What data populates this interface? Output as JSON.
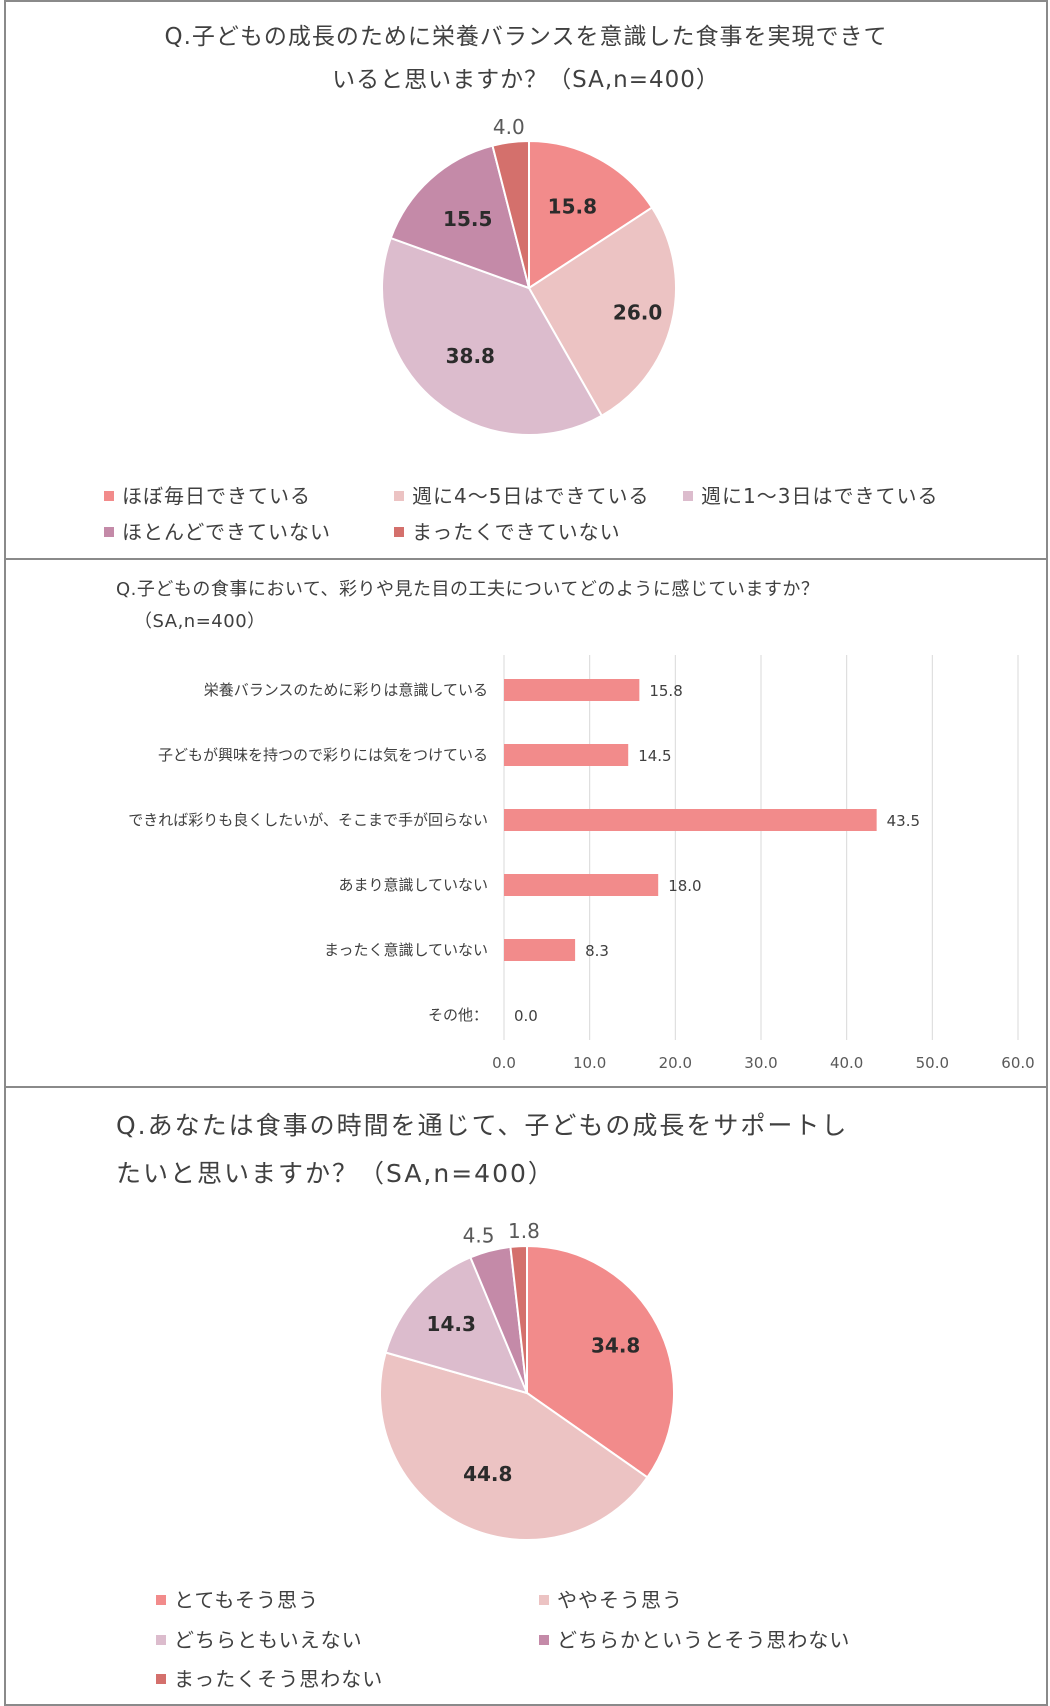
{
  "charts": [
    {
      "title_line1": "Q.子どもの成長のために栄養バランスを意識した食事を実現できて",
      "title_line2": "いると思いますか？（SA,n=400）",
      "legend": [
        "ほぼ毎日できている",
        "週に4～5日はできている",
        "週に1～3日はできている",
        "ほとんどできていない",
        "まったくできていない"
      ]
    },
    {
      "title_line1": "Q.子どもの食事において、彩りや見た目の工夫についてどのように感じていますか？",
      "title_line2": "（SA,n=400）"
    },
    {
      "title_line1": "Q.あなたは食事の時間を通じて、子どもの成長をサポートし",
      "title_line2": "たいと思いますか？（SA,n=400）",
      "legend": [
        "とてもそう思う",
        "ややそう思う",
        "どちらともいえない",
        "どちらかというとそう思わない",
        "まったくそう思わない"
      ]
    }
  ],
  "chart_data": [
    {
      "type": "pie",
      "title": "Q.子どもの成長のために栄養バランスを意識した食事を実現できているとと思いますか？（SA,n=400）",
      "categories": [
        "ほぼ毎日できている",
        "週に4～5日はできている",
        "週に1～3日はできている",
        "ほとんどできていない",
        "まったくできていない"
      ],
      "values": [
        15.8,
        26.0,
        38.8,
        15.5,
        4.0
      ],
      "labels": [
        "15.8",
        "26.0",
        "38.8",
        "15.5",
        "4.0"
      ],
      "colors": [
        "#f28b8b",
        "#ecc3c3",
        "#dcbccd",
        "#c48aa8",
        "#d4706c"
      ],
      "legend_position": "bottom"
    },
    {
      "type": "bar",
      "orientation": "horizontal",
      "title": "Q.子どもの食事において、彩りや見た目の工夫についてどのように感じていますか？（SA,n=400）",
      "categories": [
        "栄養バランスのために彩りは意識している",
        "子どもが興味を持つので彩りには気をつけている",
        "できれば彩りも良くしたいが、そこまで手が回らない",
        "あまり意識していない",
        "まったく意識していない",
        "その他："
      ],
      "values": [
        15.8,
        14.5,
        43.5,
        18.0,
        8.3,
        0.0
      ],
      "labels": [
        "15.8",
        "14.5",
        "43.5",
        "18.0",
        "8.3",
        "0.0"
      ],
      "xlim": [
        0,
        60
      ],
      "xticks": [
        "0.0",
        "10.0",
        "20.0",
        "30.0",
        "40.0",
        "50.0",
        "60.0"
      ],
      "color": "#f28b8b",
      "grid": true
    },
    {
      "type": "pie",
      "title": "Q.あなたは食事の時間を通じて、子どもの成長をサポートしたいと思いますか？（SA,n=400）",
      "categories": [
        "とてもそう思う",
        "ややそう思う",
        "どちらともいえない",
        "どちらかというとそう思わない",
        "まったくそう思わない"
      ],
      "values": [
        34.8,
        44.8,
        14.3,
        4.5,
        1.8
      ],
      "labels": [
        "34.8",
        "44.8",
        "14.3",
        "4.5",
        "1.8"
      ],
      "colors": [
        "#f28b8b",
        "#ecc3c3",
        "#dcbccd",
        "#c48aa8",
        "#d4706c"
      ],
      "legend_position": "bottom"
    }
  ]
}
